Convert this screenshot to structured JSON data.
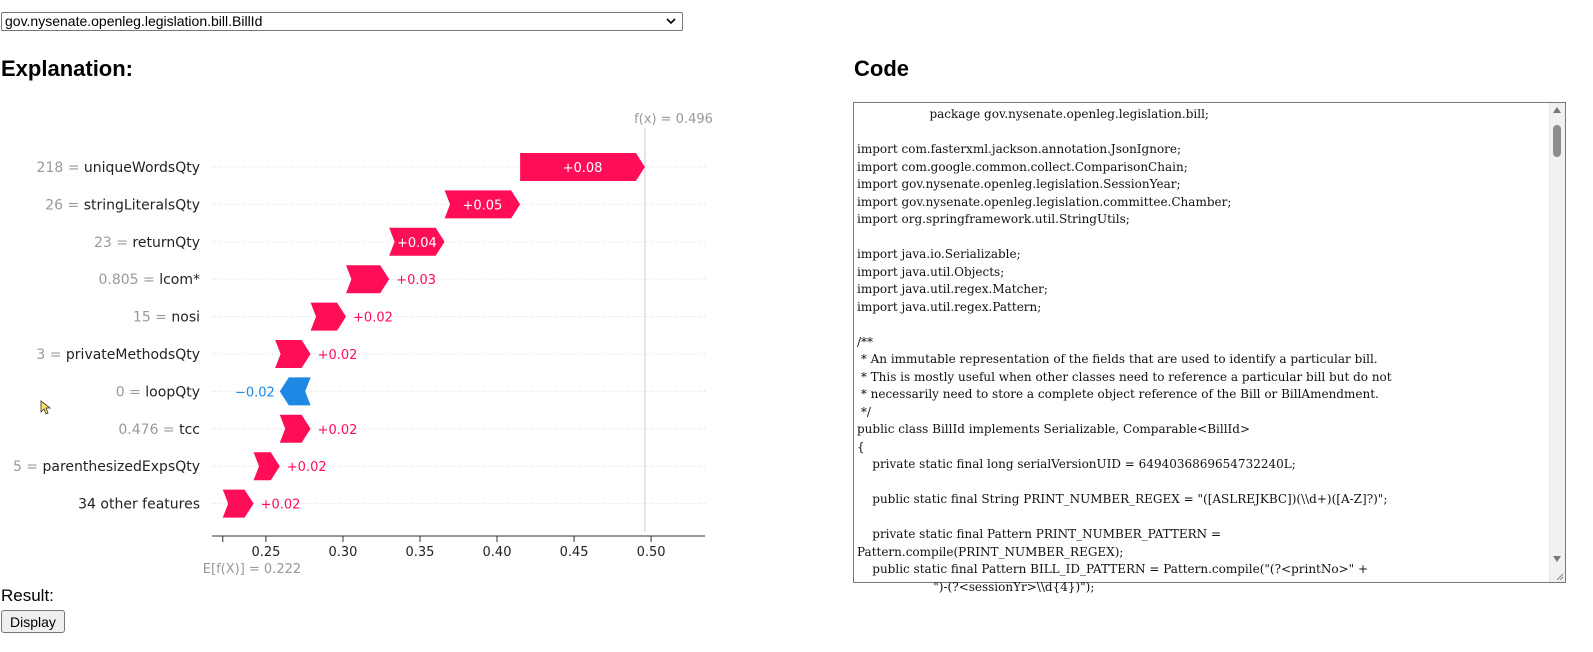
{
  "selector": {
    "value": "gov.nysenate.openleg.legislation.bill.BillId"
  },
  "headings": {
    "explanation": "Explanation:",
    "code": "Code"
  },
  "chart_data": {
    "type": "waterfall",
    "base_label": "E[f(X)] = 0.222",
    "base_value": 0.222,
    "fx_label": "f(x) = 0.496",
    "fx_value": 0.496,
    "xlim": [
      0.215,
      0.535
    ],
    "ticks": [
      0.25,
      0.3,
      0.35,
      0.4,
      0.45,
      0.5
    ],
    "tick_labels": [
      "0.25",
      "0.30",
      "0.35",
      "0.40",
      "0.45",
      "0.50"
    ],
    "colors": {
      "positive": "#ff0d57",
      "negative": "#1e88e5",
      "positive_text": "#ff0d57",
      "negative_text": "#1e88e5"
    },
    "features": [
      {
        "value": "218",
        "name": "uniqueWordsQty",
        "start": 0.415,
        "end": 0.496,
        "label": "+0.08"
      },
      {
        "value": "26",
        "name": "stringLiteralsQty",
        "start": 0.366,
        "end": 0.415,
        "label": "+0.05"
      },
      {
        "value": "23",
        "name": "returnQty",
        "start": 0.33,
        "end": 0.366,
        "label": "+0.04"
      },
      {
        "value": "0.805",
        "name": "lcom*",
        "start": 0.302,
        "end": 0.33,
        "label": "+0.03"
      },
      {
        "value": "15",
        "name": "nosi",
        "start": 0.279,
        "end": 0.302,
        "label": "+0.02"
      },
      {
        "value": "3",
        "name": "privateMethodsQty",
        "start": 0.256,
        "end": 0.279,
        "label": "+0.02"
      },
      {
        "value": "0",
        "name": "loopQty",
        "start": 0.279,
        "end": 0.259,
        "label": "−0.02"
      },
      {
        "value": "0.476",
        "name": "tcc",
        "start": 0.259,
        "end": 0.279,
        "label": "+0.02"
      },
      {
        "value": "5",
        "name": "parenthesizedExpsQty",
        "start": 0.242,
        "end": 0.259,
        "label": "+0.02"
      },
      {
        "value": "",
        "name": "34 other features",
        "start": 0.222,
        "end": 0.242,
        "label": "+0.02"
      }
    ]
  },
  "code": {
    "text": "                   package gov.nysenate.openleg.legislation.bill;\n\nimport com.fasterxml.jackson.annotation.JsonIgnore;\nimport com.google.common.collect.ComparisonChain;\nimport gov.nysenate.openleg.legislation.SessionYear;\nimport gov.nysenate.openleg.legislation.committee.Chamber;\nimport org.springframework.util.StringUtils;\n\nimport java.io.Serializable;\nimport java.util.Objects;\nimport java.util.regex.Matcher;\nimport java.util.regex.Pattern;\n\n/**\n * An immutable representation of the fields that are used to identify a particular bill.\n * This is mostly useful when other classes need to reference a particular bill but do not\n * necessarily need to store a complete object reference of the Bill or BillAmendment.\n */\npublic class BillId implements Serializable, Comparable<BillId>\n{\n    private static final long serialVersionUID = 6494036869654732240L;\n\n    public static final String PRINT_NUMBER_REGEX = \"([ASLREJKBC])(\\\\d+)([A-Z]?)\";\n\n    private static final Pattern PRINT_NUMBER_PATTERN =\nPattern.compile(PRINT_NUMBER_REGEX);\n    public static final Pattern BILL_ID_PATTERN = Pattern.compile(\"(?<printNo>\" +\n                    \")-(?<sessionYr>\\\\d{4})\");"
  },
  "result": {
    "label": "Result:",
    "button": "Display"
  }
}
